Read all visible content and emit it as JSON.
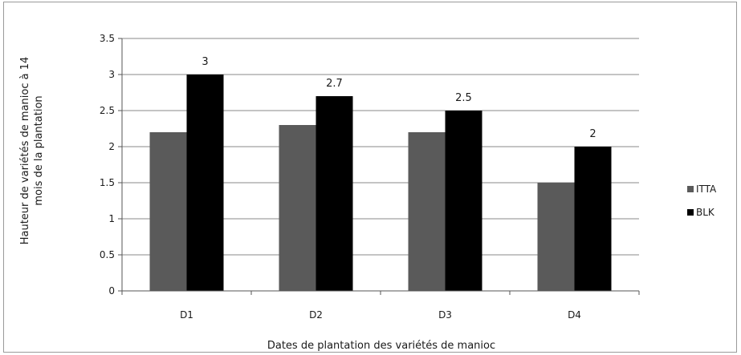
{
  "chart_data": {
    "type": "bar",
    "categories": [
      "D1",
      "D2",
      "D3",
      "D4"
    ],
    "series": [
      {
        "name": "ITTA",
        "values": [
          2.2,
          2.3,
          2.2,
          1.5
        ],
        "color": "#5a5a5a"
      },
      {
        "name": "BLK",
        "values": [
          3,
          2.7,
          2.5,
          2
        ],
        "color": "#000000"
      }
    ],
    "data_labels": {
      "BLK": [
        "3",
        "2.7",
        "2.5",
        "2"
      ]
    },
    "ylim": [
      0,
      3.5
    ],
    "yticks": [
      "0",
      "0.5",
      "1",
      "1.5",
      "2",
      "2.5",
      "3",
      "3.5"
    ],
    "ylabel_lines": [
      "Hauteur  de variétés de manioc à 14",
      "mois de la plantation"
    ],
    "xlabel": "Dates de plantation  des variétés de manioc",
    "grid": true,
    "legend_position": "right"
  }
}
